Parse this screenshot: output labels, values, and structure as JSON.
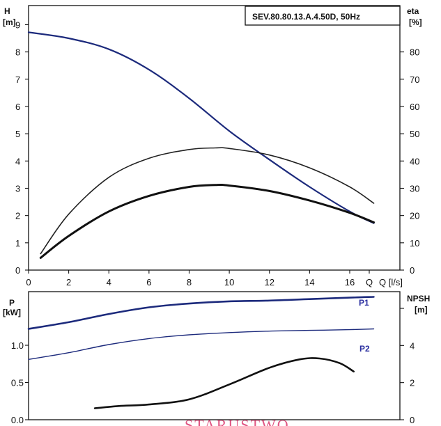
{
  "model_label": "SEV.80.80.13.A.4.50D, 50Hz",
  "stamp_text": "STARUSTWO",
  "colors": {
    "blue": "#1c2a7c",
    "black": "#111111",
    "label_blue": "#2b2fa0",
    "stamp": "#d81e5b"
  },
  "chart_data": [
    {
      "type": "line",
      "x": [
        0.6,
        2,
        4,
        6,
        8,
        10,
        12,
        14,
        16,
        17.2
      ],
      "xlabel_unit": "Q [l/s]",
      "xlim": [
        0,
        18.5
      ],
      "xticks": [
        "0",
        "2",
        "4",
        "6",
        "8",
        "10",
        "12",
        "14",
        "16",
        "Q"
      ],
      "left_axis": {
        "label": "H",
        "unit": "[m]",
        "ylim": [
          0,
          9.7
        ],
        "ticks": [
          "0",
          "1",
          "2",
          "3",
          "4",
          "5",
          "6",
          "7",
          "8",
          "9"
        ]
      },
      "right_axis": {
        "label": "eta",
        "unit": "[%]",
        "ylim": [
          0,
          97
        ],
        "ticks": [
          "0",
          "10",
          "20",
          "30",
          "40",
          "50",
          "60",
          "70",
          "80"
        ]
      },
      "series": [
        {
          "key": "H",
          "axis": "left",
          "color": "#1c2a7c",
          "width": 2.2,
          "points": [
            [
              0,
              8.72
            ],
            [
              2,
              8.5
            ],
            [
              4,
              8.1
            ],
            [
              6,
              7.35
            ],
            [
              8,
              6.3
            ],
            [
              10,
              5.1
            ],
            [
              12,
              4.05
            ],
            [
              14,
              3.05
            ],
            [
              16,
              2.15
            ],
            [
              17.2,
              1.72
            ]
          ]
        },
        {
          "key": "eta1",
          "axis": "right",
          "color": "#222222",
          "width": 1.6,
          "points": [
            [
              0.6,
              6
            ],
            [
              2,
              20.5
            ],
            [
              4,
              34
            ],
            [
              6,
              41
            ],
            [
              8,
              44.2
            ],
            [
              9.3,
              44.8
            ],
            [
              10,
              44.6
            ],
            [
              12,
              42.2
            ],
            [
              14,
              37.5
            ],
            [
              16,
              30.5
            ],
            [
              17.2,
              24.5
            ]
          ]
        },
        {
          "key": "eta2",
          "axis": "right",
          "color": "#111111",
          "width": 3.0,
          "points": [
            [
              0.6,
              4.5
            ],
            [
              2,
              12.5
            ],
            [
              4,
              21.5
            ],
            [
              6,
              27.2
            ],
            [
              8,
              30.5
            ],
            [
              9.3,
              31.2
            ],
            [
              10,
              31
            ],
            [
              12,
              29
            ],
            [
              14,
              25.5
            ],
            [
              16,
              21
            ],
            [
              17.2,
              17.5
            ]
          ]
        }
      ]
    },
    {
      "type": "line",
      "xlim": [
        0,
        18.5
      ],
      "left_axis": {
        "label": "P",
        "unit": "[kW]",
        "ylim": [
          0,
          1.72
        ],
        "ticks": [
          "0.0",
          "0.5",
          "1.0"
        ]
      },
      "right_axis": {
        "label": "NPSH",
        "unit": "[m]",
        "ylim": [
          0,
          6.9
        ],
        "ticks": [
          "0",
          "2",
          "4"
        ]
      },
      "series": [
        {
          "name": "P1",
          "axis": "left",
          "color": "#1c2a7c",
          "width": 2.6,
          "points": [
            [
              0,
              1.22
            ],
            [
              2,
              1.31
            ],
            [
              4,
              1.42
            ],
            [
              6,
              1.51
            ],
            [
              8,
              1.56
            ],
            [
              10,
              1.59
            ],
            [
              12,
              1.6
            ],
            [
              14,
              1.62
            ],
            [
              16,
              1.64
            ],
            [
              17.2,
              1.65
            ]
          ]
        },
        {
          "name": "P2",
          "axis": "left",
          "color": "#1c2a7c",
          "width": 1.4,
          "points": [
            [
              0,
              0.81
            ],
            [
              2,
              0.9
            ],
            [
              4,
              1.01
            ],
            [
              6,
              1.09
            ],
            [
              8,
              1.14
            ],
            [
              10,
              1.17
            ],
            [
              12,
              1.19
            ],
            [
              14,
              1.2
            ],
            [
              16,
              1.21
            ],
            [
              17.2,
              1.22
            ]
          ]
        },
        {
          "key": "NPSH",
          "axis": "right",
          "color": "#111111",
          "width": 2.6,
          "points": [
            [
              3.3,
              0.62
            ],
            [
              4.5,
              0.74
            ],
            [
              6,
              0.82
            ],
            [
              8,
              1.1
            ],
            [
              10,
              1.9
            ],
            [
              12,
              2.8
            ],
            [
              13.5,
              3.25
            ],
            [
              14.5,
              3.3
            ],
            [
              15.5,
              3.05
            ],
            [
              16.2,
              2.6
            ]
          ]
        }
      ]
    }
  ]
}
